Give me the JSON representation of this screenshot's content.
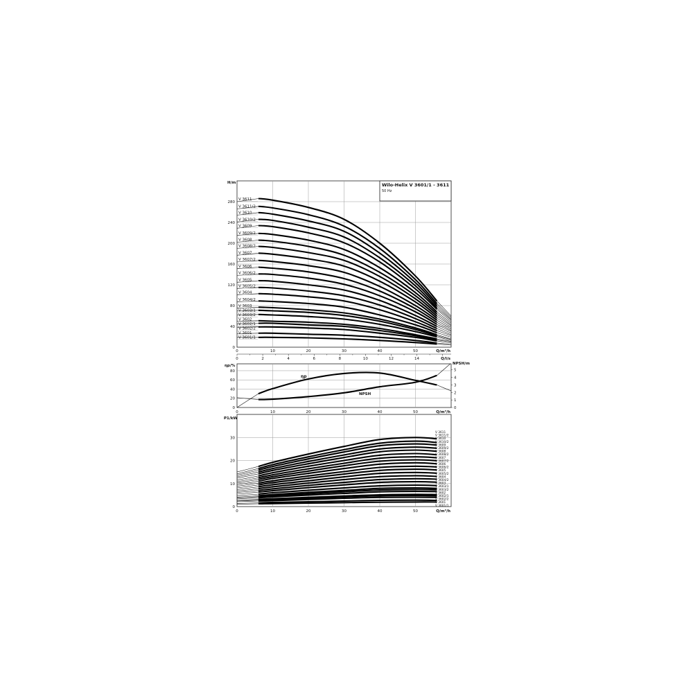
{
  "chart_data": [
    {
      "type": "line",
      "title": "Wilo-Helix V 3601/1 - 3611",
      "subtitle": "50 Hz",
      "xlabel": "Q/m³/h",
      "ylabel": "H/m",
      "x2label": "Q/l/s",
      "xlim": [
        0,
        60
      ],
      "ylim": [
        0,
        320
      ],
      "grid": true,
      "xticks": [
        0,
        10,
        20,
        30,
        40,
        50
      ],
      "yticks": [
        0,
        40,
        80,
        120,
        160,
        200,
        240,
        280
      ],
      "x2ticks": [
        0,
        2,
        4,
        6,
        8,
        10,
        12,
        14
      ],
      "x": [
        0,
        6,
        10,
        20,
        30,
        40,
        50,
        56,
        60
      ],
      "series": [
        {
          "name": "V 3611",
          "values": [
            280,
            286,
            283,
            269,
            246,
            200,
            137,
            89,
            60
          ]
        },
        {
          "name": "V 3611/2",
          "values": [
            266,
            271,
            268,
            255,
            233,
            190,
            130,
            84,
            57
          ]
        },
        {
          "name": "V 3610",
          "values": [
            254,
            259,
            256,
            243,
            223,
            181,
            124,
            80,
            54
          ]
        },
        {
          "name": "V 3610/2",
          "values": [
            241,
            246,
            244,
            231,
            212,
            172,
            118,
            76,
            52
          ]
        },
        {
          "name": "V 3609",
          "values": [
            229,
            234,
            232,
            220,
            201,
            164,
            112,
            73,
            49
          ]
        },
        {
          "name": "V 3609/2",
          "values": [
            215,
            219,
            217,
            206,
            188,
            153,
            105,
            68,
            46
          ]
        },
        {
          "name": "V 3608",
          "values": [
            202,
            206,
            204,
            194,
            177,
            144,
            99,
            64,
            43
          ]
        },
        {
          "name": "V 3608/2",
          "values": [
            190,
            194,
            192,
            182,
            167,
            136,
            93,
            60,
            41
          ]
        },
        {
          "name": "V 3607",
          "values": [
            177,
            181,
            179,
            170,
            156,
            127,
            87,
            56,
            38
          ]
        },
        {
          "name": "V 3607/2",
          "values": [
            164,
            167,
            165,
            157,
            144,
            117,
            80,
            52,
            35
          ]
        },
        {
          "name": "V 3606",
          "values": [
            151,
            154,
            152,
            145,
            132,
            108,
            74,
            48,
            32
          ]
        },
        {
          "name": "V 3606/2",
          "values": [
            138,
            141,
            140,
            133,
            121,
            99,
            68,
            44,
            30
          ]
        },
        {
          "name": "V 3605",
          "values": [
            125,
            128,
            127,
            120,
            110,
            90,
            61,
            40,
            27
          ]
        },
        {
          "name": "V 3605/2",
          "values": [
            113,
            115,
            114,
            108,
            99,
            81,
            55,
            36,
            24
          ]
        },
        {
          "name": "V 3604",
          "values": [
            101,
            103,
            102,
            97,
            89,
            72,
            49,
            32,
            22
          ]
        },
        {
          "name": "V 3604/2",
          "values": [
            87,
            89,
            88,
            84,
            77,
            62,
            43,
            28,
            19
          ]
        },
        {
          "name": "V 3603",
          "values": [
            75,
            77,
            76,
            72,
            66,
            54,
            37,
            24,
            16
          ]
        },
        {
          "name": "V 3603/1",
          "values": [
            70,
            71,
            70,
            67,
            61,
            50,
            34,
            22,
            15
          ]
        },
        {
          "name": "V 3603/2",
          "values": [
            62,
            63,
            62,
            59,
            54,
            44,
            30,
            20,
            13
          ]
        },
        {
          "name": "V 3602",
          "values": [
            50,
            51,
            50,
            48,
            44,
            36,
            24,
            16,
            11
          ]
        },
        {
          "name": "V 3602/1",
          "values": [
            45,
            46,
            46,
            43,
            40,
            32,
            22,
            14,
            10
          ]
        },
        {
          "name": "V 3602/2",
          "values": [
            38,
            39,
            39,
            37,
            34,
            27,
            19,
            12,
            8
          ]
        },
        {
          "name": "V 3601",
          "values": [
            26,
            27,
            27,
            25,
            23,
            19,
            13,
            8,
            6
          ]
        },
        {
          "name": "V 3601/1",
          "values": [
            19,
            19,
            19,
            18,
            16,
            13,
            9,
            6,
            4
          ]
        }
      ]
    },
    {
      "type": "line",
      "xlabel": "Q/m³/h",
      "ylabel": "ηp/%",
      "y2label": "NPSH/m",
      "xlim": [
        0,
        60
      ],
      "ylim": [
        0,
        95
      ],
      "y2lim": [
        0,
        5.8
      ],
      "grid": true,
      "xticks": [
        0,
        10,
        20,
        30,
        40,
        50
      ],
      "yticks": [
        0,
        20,
        40,
        60,
        80
      ],
      "y2ticks": [
        0,
        1,
        2,
        3,
        4,
        5
      ],
      "x": [
        0,
        6,
        10,
        20,
        30,
        40,
        50,
        56,
        60
      ],
      "series": [
        {
          "name": "ηp",
          "axis": "left",
          "values": [
            0,
            30,
            41,
            62,
            74,
            75,
            59,
            49,
            36
          ]
        },
        {
          "name": "NPSH",
          "axis": "right",
          "values": [
            1.3,
            1.05,
            1.1,
            1.45,
            1.95,
            2.75,
            3.35,
            4.25,
            5.9
          ]
        }
      ]
    },
    {
      "type": "line",
      "xlabel": "Q/m³/h",
      "ylabel": "P1/kW",
      "xlim": [
        0,
        60
      ],
      "ylim": [
        0,
        40
      ],
      "grid": true,
      "xticks": [
        0,
        10,
        20,
        30,
        40,
        50
      ],
      "yticks": [
        0,
        10,
        20,
        30
      ],
      "x": [
        0,
        6,
        10,
        20,
        30,
        40,
        50,
        56
      ],
      "series": [
        {
          "name": "V 3611",
          "values": [
            15.0,
            17.4,
            19.2,
            22.8,
            26.1,
            29.1,
            30.0,
            29.4
          ]
        },
        {
          "name": "V 3611/2",
          "values": [
            14.2,
            16.5,
            18.2,
            21.6,
            24.7,
            27.5,
            28.4,
            27.8
          ]
        },
        {
          "name": "V 3610",
          "values": [
            13.6,
            15.8,
            17.4,
            20.7,
            23.7,
            26.4,
            27.2,
            26.7
          ]
        },
        {
          "name": "V 3610/2",
          "values": [
            12.9,
            15.0,
            16.5,
            19.6,
            22.4,
            25.0,
            25.8,
            25.3
          ]
        },
        {
          "name": "V 3609",
          "values": [
            12.3,
            14.2,
            15.7,
            18.6,
            21.3,
            23.8,
            24.5,
            24.0
          ]
        },
        {
          "name": "V 3609/2",
          "values": [
            11.5,
            13.3,
            14.7,
            17.5,
            20.0,
            22.3,
            23.0,
            22.5
          ]
        },
        {
          "name": "V 3608",
          "values": [
            10.8,
            12.5,
            13.8,
            16.4,
            18.8,
            21.0,
            21.6,
            21.2
          ]
        },
        {
          "name": "V 3608/2",
          "values": [
            10.2,
            11.8,
            13.0,
            15.4,
            17.7,
            19.7,
            20.3,
            19.9
          ]
        },
        {
          "name": "V 3607",
          "values": [
            9.5,
            11.0,
            12.2,
            14.4,
            16.5,
            18.4,
            19.0,
            18.6
          ]
        },
        {
          "name": "V 3607/2",
          "values": [
            8.8,
            10.2,
            11.2,
            13.3,
            15.2,
            17.0,
            17.5,
            17.2
          ]
        },
        {
          "name": "V 3606",
          "values": [
            8.1,
            9.4,
            10.4,
            12.3,
            14.1,
            15.7,
            16.2,
            15.9
          ]
        },
        {
          "name": "V 3606/2",
          "values": [
            7.4,
            8.6,
            9.5,
            11.2,
            12.9,
            14.4,
            14.8,
            14.5
          ]
        },
        {
          "name": "V 3605",
          "values": [
            6.7,
            7.8,
            8.6,
            10.2,
            11.7,
            13.0,
            13.4,
            13.1
          ]
        },
        {
          "name": "V 3605/2",
          "values": [
            6.1,
            7.0,
            7.7,
            9.2,
            10.5,
            11.7,
            12.1,
            11.9
          ]
        },
        {
          "name": "V 3604",
          "values": [
            5.4,
            6.3,
            6.9,
            8.2,
            9.4,
            10.5,
            10.8,
            10.6
          ]
        },
        {
          "name": "V 3604/2",
          "values": [
            4.7,
            5.4,
            6.0,
            7.1,
            8.1,
            9.0,
            9.3,
            9.1
          ]
        },
        {
          "name": "V 3603",
          "values": [
            4.1,
            4.7,
            5.2,
            6.2,
            7.0,
            7.9,
            8.1,
            7.9
          ]
        },
        {
          "name": "V 3603/1",
          "values": [
            3.7,
            4.3,
            4.7,
            5.6,
            6.4,
            7.2,
            7.4,
            7.3
          ]
        },
        {
          "name": "V 3603/2",
          "values": [
            3.3,
            3.8,
            4.2,
            5.0,
            5.7,
            6.4,
            6.6,
            6.5
          ]
        },
        {
          "name": "V 3602",
          "values": [
            2.7,
            3.1,
            3.4,
            4.0,
            4.6,
            5.1,
            5.3,
            5.2
          ]
        },
        {
          "name": "V 3602/1",
          "values": [
            2.4,
            2.8,
            3.1,
            3.6,
            4.2,
            4.7,
            4.8,
            4.7
          ]
        },
        {
          "name": "V 3602/2",
          "values": [
            2.1,
            2.4,
            2.6,
            3.1,
            3.6,
            4.0,
            4.1,
            4.0
          ]
        },
        {
          "name": "V 3601",
          "values": [
            1.4,
            1.6,
            1.8,
            2.1,
            2.4,
            2.7,
            2.8,
            2.7
          ]
        },
        {
          "name": "V 3601/1",
          "values": [
            1.0,
            1.2,
            1.3,
            1.5,
            1.7,
            1.9,
            2.0,
            2.0
          ]
        }
      ]
    }
  ]
}
